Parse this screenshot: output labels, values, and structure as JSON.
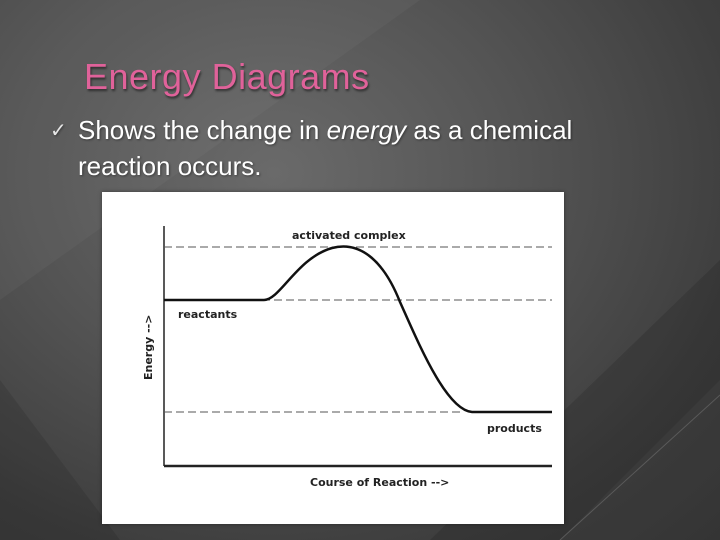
{
  "slide": {
    "title": "Energy Diagrams",
    "bullet": {
      "icon": "checkmark-icon",
      "text_before": "Shows the change in ",
      "text_emphasis": "energy",
      "text_after": " as a chemical reaction occurs."
    }
  },
  "diagram": {
    "y_axis_label": "Energy -->",
    "x_axis_label": "Course of Reaction -->",
    "labels": {
      "activated_complex": "activated complex",
      "reactants": "reactants",
      "products": "products"
    }
  },
  "colors": {
    "title": "#e0629a",
    "text": "#ffffff",
    "curve": "#111111",
    "dashed": "#555555"
  }
}
